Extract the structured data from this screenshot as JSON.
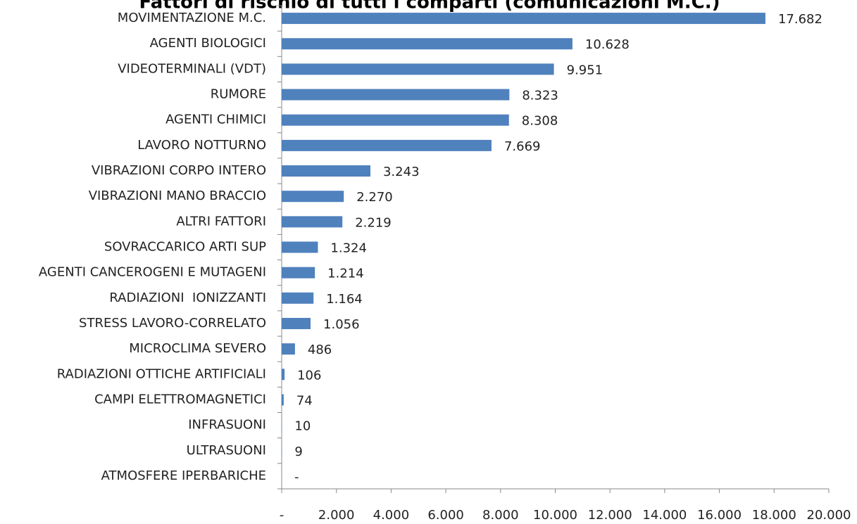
{
  "chart_data": {
    "type": "hbar",
    "title": "Fattori di rischio di tutti i comparti (comunicazioni M.C.)",
    "categories": [
      "MOVIMENTAZIONE M.C.",
      "AGENTI BIOLOGICI",
      "VIDEOTERMINALI (VDT)",
      "RUMORE",
      "AGENTI CHIMICI",
      "LAVORO NOTTURNO",
      "VIBRAZIONI CORPO INTERO",
      "VIBRAZIONI MANO BRACCIO",
      "ALTRI FATTORI",
      "SOVRACCARICO ARTI SUP",
      "AGENTI CANCEROGENI E MUTAGENI",
      "RADIAZIONI  IONIZZANTI",
      "STRESS LAVORO-CORRELATO",
      "MICROCLIMA SEVERO",
      "RADIAZIONI OTTICHE ARTIFICIALI",
      "CAMPI ELETTROMAGNETICI",
      "INFRASUONI",
      "ULTRASUONI",
      "ATMOSFERE IPERBARICHE"
    ],
    "values": [
      17682,
      10628,
      9951,
      8323,
      8308,
      7669,
      3243,
      2270,
      2219,
      1324,
      1214,
      1164,
      1056,
      486,
      106,
      74,
      10,
      9,
      0
    ],
    "value_labels": [
      "17.682",
      "10.628",
      "9.951",
      "8.323",
      "8.308",
      "7.669",
      "3.243",
      "2.270",
      "2.219",
      "1.324",
      "1.214",
      "1.164",
      "1.056",
      "486",
      "106",
      "74",
      "10",
      "9",
      "-"
    ],
    "color": "#4f81bd",
    "xlim": [
      0,
      20000
    ],
    "xticks": [
      {
        "value": 0,
        "label": "-"
      },
      {
        "value": 2000,
        "label": "2.000"
      },
      {
        "value": 4000,
        "label": "4.000"
      },
      {
        "value": 6000,
        "label": "6.000"
      },
      {
        "value": 8000,
        "label": "8.000"
      },
      {
        "value": 10000,
        "label": "10.000"
      },
      {
        "value": 12000,
        "label": "12.000"
      },
      {
        "value": 14000,
        "label": "14.000"
      },
      {
        "value": 16000,
        "label": "16.000"
      },
      {
        "value": 18000,
        "label": "18.000"
      },
      {
        "value": 20000,
        "label": "20.000"
      }
    ],
    "grid": false
  }
}
